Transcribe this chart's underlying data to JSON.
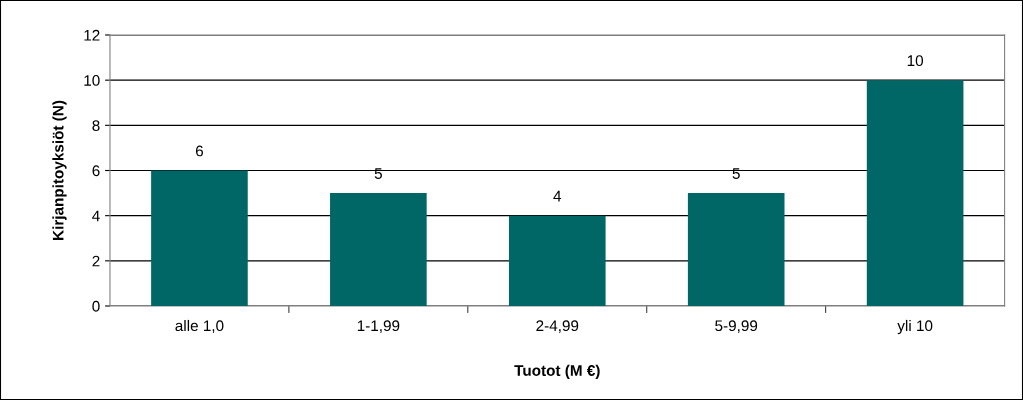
{
  "chart_data": {
    "type": "bar",
    "xlabel": "Tuotot (M €)",
    "ylabel": "Kirjanpitoyksiöt (N)",
    "categories": [
      "alle 1,0",
      "1-1,99",
      "2-4,99",
      "5-9,99",
      "yli 10"
    ],
    "values": [
      6,
      5,
      4,
      5,
      10
    ],
    "color": "#006666",
    "ylim": [
      0,
      12
    ],
    "yticks": [
      0,
      2,
      4,
      6,
      8,
      10,
      12
    ],
    "grid": "y",
    "data_labels": true
  }
}
